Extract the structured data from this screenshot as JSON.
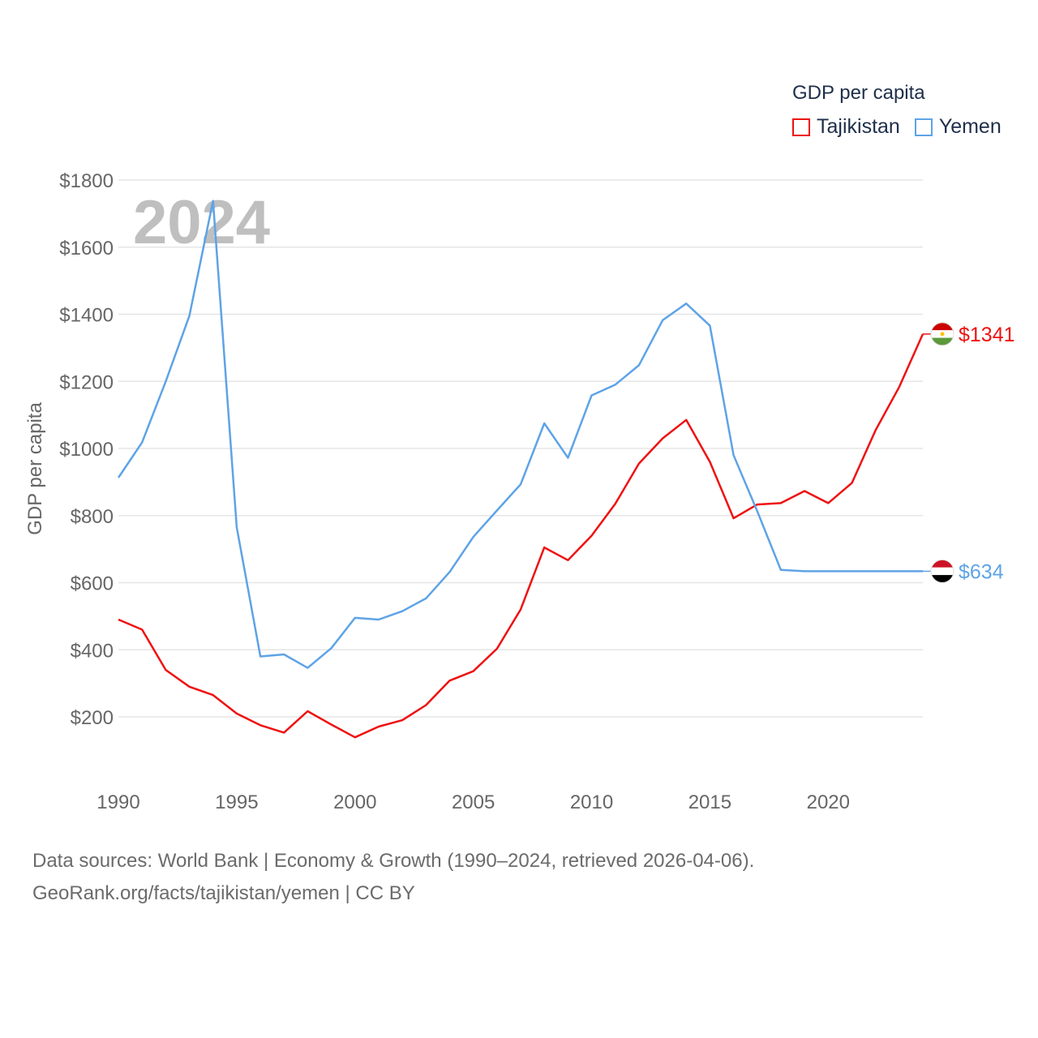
{
  "legend": {
    "title": "GDP per capita",
    "items": [
      {
        "label": "Tajikistan",
        "color": "#ee1111"
      },
      {
        "label": "Yemen",
        "color": "#5ea3e6"
      }
    ]
  },
  "footer": {
    "line1": "Data sources: World Bank | Economy & Growth (1990–2024, retrieved 2026-04-06).",
    "line2": "GeoRank.org/facts/tajikistan/yemen | CC BY"
  },
  "chart_data": {
    "type": "line",
    "title": "GDP per capita",
    "year_label": "2024",
    "xlabel": "",
    "ylabel": "GDP per capita",
    "xlim": [
      1990,
      2024
    ],
    "ylim": [
      80,
      1820
    ],
    "y_ticks": [
      200,
      400,
      600,
      800,
      1000,
      1200,
      1400,
      1600,
      1800
    ],
    "y_tick_labels": [
      "$200",
      "$400",
      "$600",
      "$800",
      "$1000",
      "$1200",
      "$1400",
      "$1600",
      "$1800"
    ],
    "x_ticks": [
      1990,
      1995,
      2000,
      2005,
      2010,
      2015,
      2020
    ],
    "x_tick_labels": [
      "1990",
      "1995",
      "2000",
      "2005",
      "2010",
      "2015",
      "2020"
    ],
    "grid": true,
    "x": [
      1990,
      1991,
      1992,
      1993,
      1994,
      1995,
      1996,
      1997,
      1998,
      1999,
      2000,
      2001,
      2002,
      2003,
      2004,
      2005,
      2006,
      2007,
      2008,
      2009,
      2010,
      2011,
      2012,
      2013,
      2014,
      2015,
      2016,
      2017,
      2018,
      2019,
      2020,
      2021,
      2022,
      2023,
      2024
    ],
    "series": [
      {
        "name": "Tajikistan",
        "color": "#ee1111",
        "end_label": "$1341",
        "flag": "tajikistan-flag",
        "values": [
          490,
          460,
          340,
          290,
          265,
          210,
          175,
          153,
          217,
          177,
          139,
          171,
          190,
          235,
          308,
          336,
          403,
          520,
          705,
          667,
          740,
          835,
          955,
          1030,
          1085,
          960,
          792,
          833,
          837,
          873,
          837,
          897,
          1054,
          1183,
          1341
        ]
      },
      {
        "name": "Yemen",
        "color": "#5ea3e6",
        "end_label": "$634",
        "flag": "yemen-flag",
        "values": [
          913,
          1018,
          1200,
          1395,
          1738,
          765,
          380,
          386,
          346,
          405,
          495,
          490,
          515,
          553,
          632,
          736,
          815,
          893,
          1075,
          972,
          1158,
          1190,
          1248,
          1382,
          1432,
          1366,
          980,
          813,
          638,
          634,
          634,
          634,
          634,
          634,
          634
        ]
      }
    ]
  }
}
